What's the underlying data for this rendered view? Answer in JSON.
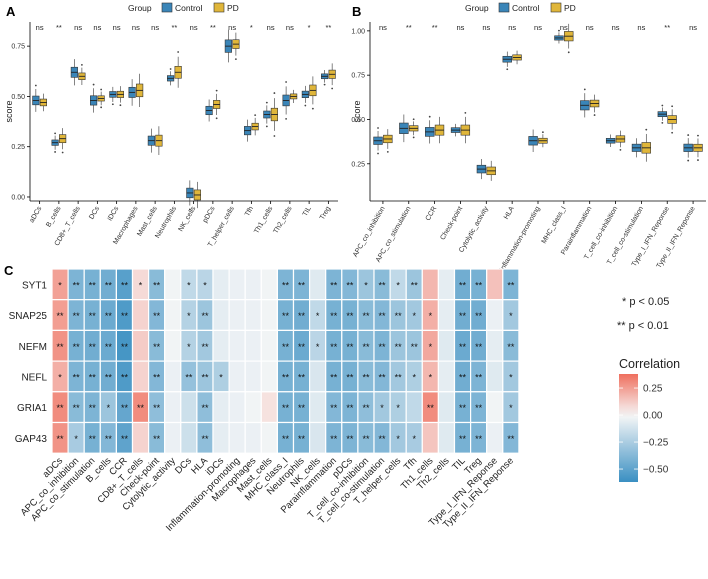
{
  "colors": {
    "control": "#3a85b8",
    "pd": "#e0b63a",
    "neg": "#3a8fc2",
    "mid": "#f7f7f7",
    "pos": "#ef6f5e"
  },
  "chart_data": [
    {
      "panel": "A",
      "type": "box",
      "legend_title": "Group",
      "legend_labels": [
        "Control",
        "PD"
      ],
      "ylabel": "score",
      "ylim": [
        -0.02,
        0.87
      ],
      "yticks": [
        0.0,
        0.25,
        0.5,
        0.75
      ],
      "ytick_labels": [
        "0.00",
        "0.25",
        "0.50",
        "0.75"
      ],
      "categories": [
        "aDCs",
        "B_cells",
        "CD8+_T_cells",
        "DCs",
        "iDCs",
        "Macrophages",
        "Mast_cells",
        "Neutrophils",
        "NK_cells",
        "pDCs",
        "T_helper_cells",
        "Tfh",
        "Th1_cells",
        "Th2_cells",
        "TIL",
        "Treg"
      ],
      "significance": [
        "ns",
        "**",
        "ns",
        "ns",
        "ns",
        "ns",
        "ns",
        "**",
        "ns",
        "**",
        "ns",
        "*",
        "ns",
        "ns",
        "*",
        "**"
      ],
      "series": [
        {
          "name": "Control",
          "medians": [
            0.48,
            0.27,
            0.62,
            0.48,
            0.51,
            0.52,
            0.28,
            0.59,
            0.02,
            0.43,
            0.75,
            0.33,
            0.41,
            0.48,
            0.51,
            0.6
          ]
        },
        {
          "name": "PD",
          "medians": [
            0.47,
            0.29,
            0.6,
            0.49,
            0.51,
            0.53,
            0.28,
            0.62,
            0.01,
            0.46,
            0.76,
            0.35,
            0.41,
            0.5,
            0.53,
            0.61
          ]
        }
      ]
    },
    {
      "panel": "B",
      "type": "box",
      "legend_title": "Group",
      "legend_labels": [
        "Control",
        "PD"
      ],
      "ylabel": "score",
      "ylim": [
        0.04,
        1.05
      ],
      "yticks": [
        0.25,
        0.5,
        0.75,
        1.0
      ],
      "ytick_labels": [
        "0.25",
        "0.50",
        "0.75",
        "1.00"
      ],
      "categories": [
        "APC_co_inhibition",
        "APC_co_stimulation",
        "CCR",
        "Check-point",
        "Cytolytic_activity",
        "HLA",
        "Inflammation-promoting",
        "MHC_class_I",
        "Parainflammation",
        "T_cell_co-inhibition",
        "T_cell_co-stimulation",
        "Type_I_IFN_Reponse",
        "Type_II_IFN_Reponse"
      ],
      "significance": [
        "ns",
        "**",
        "**",
        "ns",
        "ns",
        "ns",
        "ns",
        "ns",
        "ns",
        "ns",
        "ns",
        "**",
        "ns"
      ],
      "series": [
        {
          "name": "Control",
          "medians": [
            0.38,
            0.45,
            0.43,
            0.44,
            0.22,
            0.84,
            0.38,
            0.96,
            0.58,
            0.38,
            0.34,
            0.53,
            0.34
          ]
        },
        {
          "name": "PD",
          "medians": [
            0.39,
            0.45,
            0.44,
            0.44,
            0.21,
            0.85,
            0.38,
            0.97,
            0.59,
            0.39,
            0.34,
            0.5,
            0.34
          ]
        }
      ]
    },
    {
      "panel": "C",
      "type": "heatmap",
      "rows": [
        "SYT1",
        "SNAP25",
        "NEFM",
        "NEFL",
        "GRIA1",
        "GAP43"
      ],
      "columns": [
        "aDCs",
        "APC_co_inhibition",
        "APC_co_stimulation",
        "B_cells",
        "CCR",
        "CD8+_T_cells",
        "Check-point",
        "Cytolytic_activity",
        "DCs",
        "HLA",
        "iDCs",
        "Inflammation-promoting",
        "Macrophages",
        "Mast_cells",
        "MHC_class_I",
        "Neutrophils",
        "NK_cells",
        "Parainflammation",
        "pDCs",
        "T_cell_co-inhibition",
        "T_cell_co-stimulation",
        "T_helper_cells",
        "Tfh",
        "Th1_cells",
        "Th2_cells",
        "TIL",
        "Treg",
        "Type_I_IFN_Reponse",
        "Type_II_IFN_Reponse"
      ],
      "values": [
        [
          0.24,
          -0.4,
          -0.42,
          -0.44,
          -0.52,
          0.08,
          -0.36,
          -0.02,
          -0.18,
          -0.2,
          -0.06,
          -0.04,
          -0.04,
          -0.02,
          -0.4,
          -0.4,
          -0.08,
          -0.4,
          -0.38,
          -0.3,
          -0.36,
          -0.18,
          -0.3,
          0.18,
          -0.06,
          -0.44,
          -0.42,
          0.15,
          -0.4
        ],
        [
          0.25,
          -0.4,
          -0.42,
          -0.46,
          -0.55,
          0.1,
          -0.38,
          -0.02,
          -0.22,
          -0.3,
          -0.06,
          -0.04,
          -0.04,
          -0.02,
          -0.42,
          -0.44,
          -0.18,
          -0.42,
          -0.42,
          -0.36,
          -0.38,
          -0.3,
          -0.28,
          0.2,
          -0.06,
          -0.44,
          -0.44,
          -0.04,
          -0.28
        ],
        [
          0.28,
          -0.42,
          -0.44,
          -0.46,
          -0.58,
          0.12,
          -0.36,
          -0.02,
          -0.22,
          -0.28,
          -0.06,
          -0.04,
          -0.04,
          -0.02,
          -0.42,
          -0.46,
          -0.2,
          -0.42,
          -0.42,
          -0.36,
          -0.4,
          -0.3,
          -0.3,
          0.22,
          -0.08,
          -0.46,
          -0.44,
          -0.06,
          -0.36
        ],
        [
          0.2,
          -0.4,
          -0.42,
          -0.44,
          -0.55,
          0.1,
          -0.38,
          -0.04,
          -0.32,
          -0.3,
          -0.24,
          -0.04,
          -0.04,
          -0.02,
          -0.42,
          -0.42,
          -0.1,
          -0.42,
          -0.42,
          -0.36,
          -0.38,
          -0.28,
          -0.24,
          0.18,
          -0.06,
          -0.44,
          -0.4,
          -0.08,
          -0.28
        ],
        [
          0.3,
          -0.36,
          -0.4,
          -0.3,
          -0.48,
          0.3,
          -0.34,
          -0.04,
          -0.14,
          -0.34,
          -0.06,
          -0.04,
          -0.02,
          0.06,
          -0.42,
          -0.42,
          -0.08,
          -0.38,
          -0.4,
          -0.34,
          -0.28,
          -0.24,
          -0.18,
          0.3,
          -0.08,
          -0.42,
          -0.4,
          -0.02,
          -0.28
        ],
        [
          0.28,
          -0.26,
          -0.42,
          -0.38,
          -0.5,
          0.1,
          -0.36,
          -0.04,
          -0.14,
          -0.34,
          -0.06,
          -0.04,
          -0.04,
          -0.02,
          -0.42,
          -0.42,
          -0.1,
          -0.4,
          -0.4,
          -0.36,
          -0.38,
          -0.28,
          -0.26,
          0.14,
          -0.08,
          -0.42,
          -0.4,
          -0.04,
          -0.38
        ]
      ],
      "stars": [
        [
          "*",
          "**",
          "**",
          "**",
          "**",
          "*",
          "**",
          "",
          "*",
          "*",
          "",
          "",
          "",
          "",
          "**",
          "**",
          "",
          "**",
          "**",
          "*",
          "**",
          "*",
          "**",
          "",
          "",
          "**",
          "**",
          "",
          "**"
        ],
        [
          "**",
          "**",
          "**",
          "**",
          "**",
          "",
          "**",
          "",
          "*",
          "**",
          "",
          "",
          "",
          "",
          "**",
          "**",
          "*",
          "**",
          "**",
          "**",
          "**",
          "**",
          "*",
          "*",
          "",
          "**",
          "**",
          "",
          "*"
        ],
        [
          "**",
          "**",
          "**",
          "**",
          "**",
          "",
          "**",
          "",
          "*",
          "**",
          "",
          "",
          "",
          "",
          "**",
          "**",
          "*",
          "**",
          "**",
          "**",
          "**",
          "**",
          "**",
          "*",
          "",
          "**",
          "**",
          "",
          "**"
        ],
        [
          "*",
          "**",
          "**",
          "**",
          "**",
          "",
          "**",
          "",
          "**",
          "**",
          "*",
          "",
          "",
          "",
          "**",
          "**",
          "",
          "**",
          "**",
          "**",
          "**",
          "**",
          "*",
          "*",
          "",
          "**",
          "**",
          "",
          "*"
        ],
        [
          "**",
          "**",
          "**",
          "*",
          "**",
          "**",
          "**",
          "",
          "",
          "**",
          "",
          "",
          "",
          "",
          "**",
          "**",
          "",
          "**",
          "**",
          "**",
          "*",
          "*",
          "",
          "**",
          "",
          "**",
          "**",
          "",
          "*"
        ],
        [
          "**",
          "*",
          "**",
          "**",
          "**",
          "",
          "**",
          "",
          "",
          "**",
          "",
          "",
          "",
          "",
          "**",
          "**",
          "",
          "**",
          "**",
          "**",
          "**",
          "*",
          "*",
          "",
          "",
          "**",
          "**",
          "",
          "**"
        ]
      ],
      "legend_title": "Correlation",
      "legend_ticks": [
        0.25,
        0.0,
        -0.25,
        -0.5
      ],
      "legend_tick_labels": [
        "0.25",
        "0.00",
        "−0.25",
        "−0.50"
      ],
      "range": [
        -0.62,
        0.38
      ],
      "notes": [
        "* p < 0.05",
        "** p < 0.01"
      ]
    }
  ]
}
